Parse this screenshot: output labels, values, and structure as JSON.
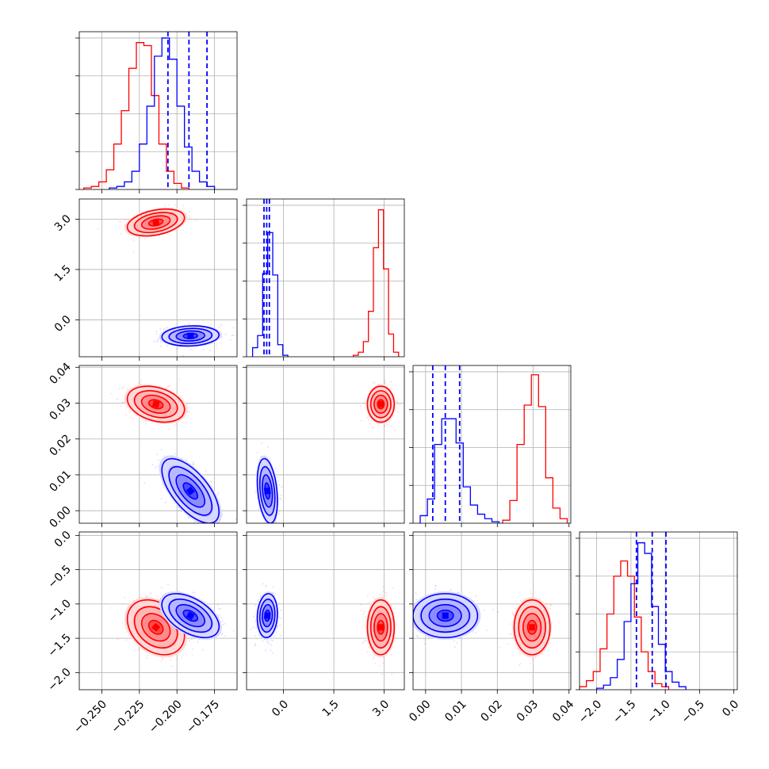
{
  "chart_data": {
    "type": "corner",
    "colors": {
      "blue": "#0000ff",
      "red": "#ff0000"
    },
    "grid": true,
    "params": [
      {
        "range": [
          -0.265,
          -0.16
        ],
        "ticks": [
          "−0.250",
          "−0.225",
          "−0.200",
          "−0.175"
        ],
        "tick_values": [
          -0.25,
          -0.225,
          -0.2,
          -0.175
        ]
      },
      {
        "range": [
          -1.1,
          3.6
        ],
        "ticks": [
          "0.0",
          "1.5",
          "3.0"
        ],
        "tick_values": [
          0.0,
          1.5,
          3.0
        ]
      },
      {
        "range": [
          -0.0035,
          0.0405
        ],
        "ticks": [
          "0.00",
          "0.01",
          "0.02",
          "0.03",
          "0.04"
        ],
        "tick_values": [
          0.0,
          0.01,
          0.02,
          0.03,
          0.04
        ]
      },
      {
        "range": [
          -2.25,
          0.05
        ],
        "ticks": [
          "−2.0",
          "−1.5",
          "−1.0",
          "−0.5",
          "0.0"
        ],
        "tick_values": [
          -2.0,
          -1.5,
          -1.0,
          -0.5,
          0.0
        ]
      }
    ],
    "series": [
      {
        "name": "blue",
        "color": "#0000ff",
        "means": [
          -0.191,
          -0.48,
          0.0055,
          -1.17
        ],
        "sigmas": [
          0.0095,
          0.15,
          0.0045,
          0.16
        ],
        "quantiles": [
          [
            -0.206,
            -0.192,
            -0.18
          ],
          [
            -0.58,
            -0.5,
            -0.42
          ],
          [
            0.002,
            0.0055,
            0.0095
          ],
          [
            -1.42,
            -1.19,
            -0.99
          ]
        ],
        "corr": {
          "0-1": 0.1,
          "0-2": -0.65,
          "0-3": -0.5,
          "1-2": -0.3,
          "1-3": 0.1,
          "2-3": 0.0
        }
      },
      {
        "name": "red",
        "color": "#ff0000",
        "means": [
          -0.214,
          2.9,
          0.0297,
          -1.34
        ],
        "sigmas": [
          0.0095,
          0.2,
          0.0025,
          0.2
        ],
        "corr": {
          "0-1": 0.35,
          "0-2": -0.3,
          "0-3": -0.3,
          "1-2": 0.0,
          "1-3": 0.0,
          "2-3": 0.0
        }
      }
    ],
    "histograms": [
      {
        "blue": [
          0.01,
          0.02,
          0.05,
          0.12,
          0.3,
          0.55,
          0.88,
          1.0,
          0.86,
          0.55,
          0.28,
          0.12,
          0.05,
          0.02
        ],
        "red": [
          0.01,
          0.02,
          0.05,
          0.13,
          0.3,
          0.52,
          0.8,
          0.97,
          0.95,
          0.62,
          0.3,
          0.12,
          0.04,
          0.01
        ],
        "edges_blue": [
          -0.245,
          -0.24,
          -0.235,
          -0.23,
          -0.225,
          -0.22,
          -0.215,
          -0.21,
          -0.205,
          -0.2,
          -0.195,
          -0.19,
          -0.185,
          -0.18,
          -0.175
        ],
        "edges_red": [
          -0.262,
          -0.257,
          -0.252,
          -0.247,
          -0.242,
          -0.237,
          -0.232,
          -0.227,
          -0.222,
          -0.217,
          -0.212,
          -0.207,
          -0.202,
          -0.197,
          -0.192
        ]
      },
      {
        "blue": [
          0.06,
          0.14,
          0.55,
          0.82,
          0.54,
          0.08,
          0.01
        ],
        "red": [
          0.01,
          0.03,
          0.1,
          0.3,
          0.72,
          0.97,
          0.58,
          0.15,
          0.03
        ],
        "edges_blue": [
          -0.92,
          -0.77,
          -0.62,
          -0.47,
          -0.32,
          -0.17,
          -0.02,
          0.13
        ],
        "edges_red": [
          2.08,
          2.23,
          2.38,
          2.53,
          2.68,
          2.83,
          2.98,
          3.13,
          3.28,
          3.43
        ]
      },
      {
        "blue": [
          0.05,
          0.16,
          0.52,
          0.69,
          0.69,
          0.53,
          0.24,
          0.12,
          0.06,
          0.03,
          0.01
        ],
        "red": [
          0.02,
          0.15,
          0.52,
          0.78,
          0.98,
          0.77,
          0.3,
          0.1,
          0.03
        ],
        "edges_blue": [
          -0.0015,
          0.0005,
          0.0025,
          0.0045,
          0.0065,
          0.0085,
          0.0105,
          0.0125,
          0.0145,
          0.0165,
          0.0185,
          0.0205
        ],
        "edges_red": [
          0.0215,
          0.0235,
          0.0255,
          0.0275,
          0.0295,
          0.0315,
          0.0335,
          0.0355,
          0.0375,
          0.0395
        ]
      },
      {
        "blue": [
          0.01,
          0.03,
          0.08,
          0.2,
          0.45,
          0.7,
          0.97,
          0.9,
          0.55,
          0.3,
          0.12,
          0.05,
          0.02
        ],
        "red": [
          0.02,
          0.06,
          0.12,
          0.27,
          0.5,
          0.75,
          0.85,
          0.75,
          0.48,
          0.25,
          0.12,
          0.04,
          0.02
        ],
        "edges_blue": [
          -2.0,
          -1.9,
          -1.8,
          -1.7,
          -1.6,
          -1.5,
          -1.4,
          -1.3,
          -1.2,
          -1.1,
          -1.0,
          -0.9,
          -0.8,
          -0.7
        ],
        "edges_red": [
          -2.25,
          -2.15,
          -2.05,
          -1.95,
          -1.85,
          -1.75,
          -1.65,
          -1.55,
          -1.45,
          -1.35,
          -1.25,
          -1.15,
          -1.05,
          -0.95
        ]
      }
    ]
  }
}
